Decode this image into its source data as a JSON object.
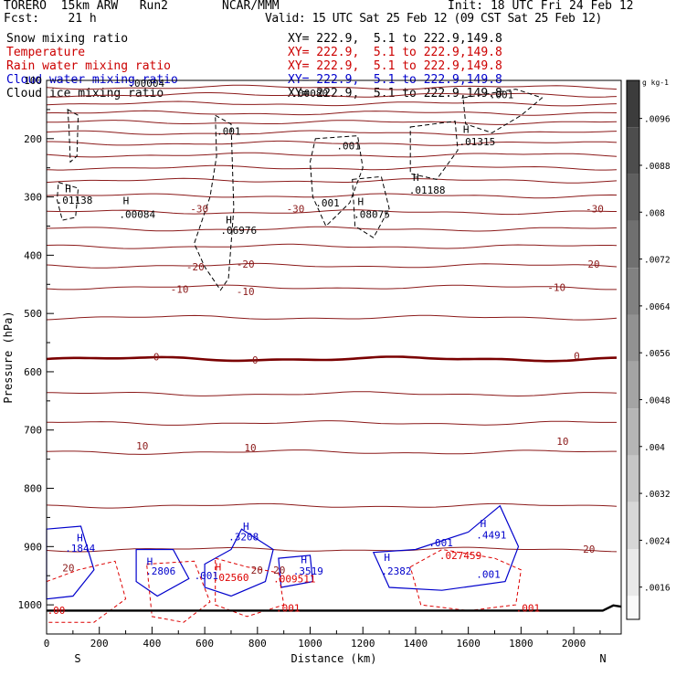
{
  "header": {
    "model": "TORERO  15km ARW   Run2",
    "org": "NCAR/MMM",
    "init": "Init: 18 UTC Fri 24 Feb 12",
    "fcst": "Fcst:    21 h",
    "valid": "Valid: 15 UTC Sat 25 Feb 12 (09 CST Sat 25 Feb 12)"
  },
  "fields": [
    {
      "name": "Snow mixing ratio",
      "xy": "XY= 222.9,  5.1 to 222.9,149.8",
      "color": "#000000"
    },
    {
      "name": "Temperature",
      "xy": "XY= 222.9,  5.1 to 222.9,149.8",
      "color": "#cc0000"
    },
    {
      "name": "Rain water mixing ratio",
      "xy": "XY= 222.9,  5.1 to 222.9,149.8",
      "color": "#cc0000"
    },
    {
      "name": "Cloud water mixing ratio",
      "xy": "XY= 222.9,  5.1 to 222.9,149.8",
      "color": "#0000cc"
    },
    {
      "name": "Cloud ice mixing ratio",
      "xy": "XY= 222.9,  5.1 to 222.9,149.8",
      "color": "#000000"
    }
  ],
  "colors": {
    "temperature": "#8b1a1a",
    "zero_isotherm": "#7a0000",
    "snow": "#000000",
    "rain": "#dd0000",
    "cloud_water": "#0000cc",
    "terrain": "#000000"
  },
  "chart_data": {
    "type": "contour",
    "xlabel": "Distance (km)",
    "ylabel": "Pressure (hPa)",
    "xlim": [
      0,
      2180
    ],
    "ylim": [
      1050,
      100
    ],
    "xticks": [
      0,
      200,
      400,
      600,
      800,
      1000,
      1200,
      1400,
      1600,
      1800,
      2000
    ],
    "yticks": [
      100,
      200,
      300,
      400,
      500,
      600,
      700,
      800,
      900,
      1000
    ],
    "left_label": "S",
    "right_label": "N",
    "isotherms": [
      {
        "p": 112,
        "label": ""
      },
      {
        "p": 125,
        "label": ""
      },
      {
        "p": 140,
        "label": ""
      },
      {
        "p": 156,
        "label": ""
      },
      {
        "p": 172,
        "label": ""
      },
      {
        "p": 190,
        "label": ""
      },
      {
        "p": 208,
        "label": ""
      },
      {
        "p": 228,
        "label": ""
      },
      {
        "p": 250,
        "label": ""
      },
      {
        "p": 272,
        "label": ""
      },
      {
        "p": 298,
        "label": ""
      },
      {
        "p": 326,
        "label": "-30"
      },
      {
        "p": 355,
        "label": ""
      },
      {
        "p": 385,
        "label": "-20"
      },
      {
        "p": 418,
        "label": ""
      },
      {
        "p": 455,
        "label": "-10"
      },
      {
        "p": 507,
        "label": ""
      },
      {
        "p": 578,
        "label": "0",
        "bold": true
      },
      {
        "p": 638,
        "label": ""
      },
      {
        "p": 688,
        "label": ""
      },
      {
        "p": 738,
        "label": "10"
      },
      {
        "p": 830,
        "label": ""
      },
      {
        "p": 905,
        "label": "20"
      }
    ],
    "temperature_labels": [
      {
        "text": "-30",
        "x": 545,
        "p": 320
      },
      {
        "text": "-30",
        "x": 910,
        "p": 320
      },
      {
        "text": "-30",
        "x": 2045,
        "p": 320
      },
      {
        "text": "-20",
        "x": 530,
        "p": 420
      },
      {
        "text": "-20",
        "x": 720,
        "p": 415
      },
      {
        "text": "-20",
        "x": 2030,
        "p": 415
      },
      {
        "text": "-10",
        "x": 470,
        "p": 458
      },
      {
        "text": "-10",
        "x": 720,
        "p": 462
      },
      {
        "text": "-10",
        "x": 1900,
        "p": 455
      },
      {
        "text": "0",
        "x": 405,
        "p": 574
      },
      {
        "text": "0",
        "x": 780,
        "p": 580
      },
      {
        "text": "0",
        "x": 2000,
        "p": 573
      },
      {
        "text": "10",
        "x": 340,
        "p": 727
      },
      {
        "text": "10",
        "x": 750,
        "p": 730
      },
      {
        "text": "10",
        "x": 1935,
        "p": 719
      },
      {
        "text": "20",
        "x": 2035,
        "p": 904
      },
      {
        "text": "20",
        "x": 60,
        "p": 936
      },
      {
        "text": "20",
        "x": 775,
        "p": 940
      },
      {
        "text": "20",
        "x": 860,
        "p": 940
      }
    ],
    "snow_labels": [
      {
        "text": "H",
        "x": 70,
        "p": 286
      },
      {
        "text": ".01138",
        "x": 37,
        "p": 305
      },
      {
        "text": "H",
        "x": 290,
        "p": 306
      },
      {
        "text": ".00084",
        "x": 275,
        "p": 330
      },
      {
        "text": ".001",
        "x": 645,
        "p": 187
      },
      {
        "text": "H",
        "x": 680,
        "p": 339
      },
      {
        "text": ".06976",
        "x": 660,
        "p": 357
      },
      {
        "text": ".00080",
        "x": 930,
        "p": 122
      },
      {
        "text": ".001",
        "x": 1100,
        "p": 212
      },
      {
        "text": ".001",
        "x": 1020,
        "p": 310
      },
      {
        "text": "H",
        "x": 1180,
        "p": 308
      },
      {
        "text": ".08075",
        "x": 1165,
        "p": 330
      },
      {
        "text": "H",
        "x": 1390,
        "p": 266
      },
      {
        "text": ".01188",
        "x": 1375,
        "p": 288
      },
      {
        "text": "H",
        "x": 1580,
        "p": 184
      },
      {
        "text": ".01315",
        "x": 1565,
        "p": 205
      },
      {
        "text": ".001",
        "x": 1680,
        "p": 124
      },
      {
        "text": ".00004",
        "x": 310,
        "p": 105
      }
    ],
    "cloud_water_labels": [
      {
        "text": "H",
        "x": 115,
        "p": 885
      },
      {
        "text": ".1844",
        "x": 70,
        "p": 903
      },
      {
        "text": "H",
        "x": 380,
        "p": 925
      },
      {
        "text": ".2806",
        "x": 375,
        "p": 942
      },
      {
        "text": ".001",
        "x": 560,
        "p": 950
      },
      {
        "text": "H",
        "x": 745,
        "p": 865
      },
      {
        "text": ".3208",
        "x": 690,
        "p": 883
      },
      {
        "text": "H",
        "x": 965,
        "p": 922
      },
      {
        "text": ".3519",
        "x": 935,
        "p": 942
      },
      {
        "text": "H",
        "x": 1280,
        "p": 918
      },
      {
        "text": ".2382",
        "x": 1270,
        "p": 942
      },
      {
        "text": ".001",
        "x": 1450,
        "p": 893
      },
      {
        "text": "H",
        "x": 1645,
        "p": 860
      },
      {
        "text": ".4491",
        "x": 1630,
        "p": 880
      },
      {
        "text": ".001",
        "x": 1630,
        "p": 947
      }
    ],
    "rain_labels": [
      {
        "text": ".00",
        "x": 2,
        "p": 1009
      },
      {
        "text": ".001",
        "x": 870,
        "p": 1005
      },
      {
        "text": ".009511",
        "x": 860,
        "p": 955
      },
      {
        "text": "H",
        "x": 640,
        "p": 935
      },
      {
        "text": ".02560",
        "x": 630,
        "p": 953
      },
      {
        "text": ".027459",
        "x": 1490,
        "p": 915
      },
      {
        "text": ".001",
        "x": 1780,
        "p": 1005
      }
    ],
    "colorbar": {
      "unit": "g kg-1",
      "ticks": [
        ".0096",
        ".0088",
        ".008",
        ".0072",
        ".0064",
        ".0056",
        ".0048",
        ".004",
        ".0032",
        ".0024",
        ".0016"
      ]
    }
  }
}
